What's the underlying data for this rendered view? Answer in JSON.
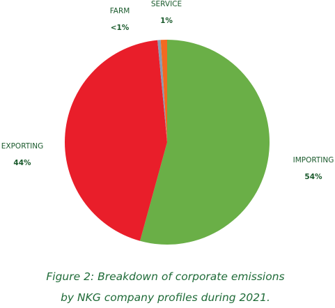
{
  "chart_data": {
    "type": "pie",
    "title": "Figure 2: Breakdown of corporate emissions by NKG company profiles during 2021.",
    "categories": [
      "IMPORTING",
      "EXPORTING",
      "FARM",
      "SERVICE"
    ],
    "values": [
      54,
      44,
      0.5,
      1
    ],
    "value_labels": [
      "54%",
      "44%",
      "<1%",
      "1%"
    ],
    "colors": [
      "#6aaf47",
      "#e91e2a",
      "#8a9bb2",
      "#f26a21"
    ]
  }
}
